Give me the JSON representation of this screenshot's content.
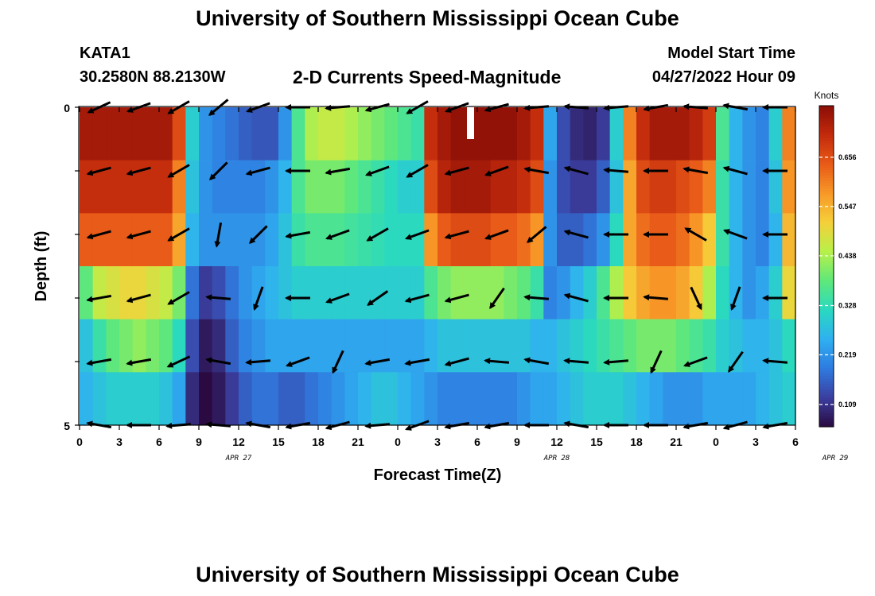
{
  "header": {
    "title": "University of Southern Mississippi Ocean Cube",
    "station": "KATA1",
    "coords": "30.2580N  88.2130W",
    "chart_title": "2-D Currents Speed-Magnitude",
    "model_start_label": "Model Start Time",
    "model_start_value": "04/27/2022 Hour 09"
  },
  "footer": {
    "title": "University of Southern Mississippi Ocean Cube"
  },
  "colors": {
    "colormap": [
      "#2a0a40",
      "#3b3fa0",
      "#2f7be0",
      "#2fb0f0",
      "#2ad9c0",
      "#5fe87a",
      "#b8f04a",
      "#f5d03a",
      "#f89828",
      "#e85a18",
      "#c22a0c",
      "#8a0e06"
    ]
  },
  "chart_data": {
    "type": "heatmap",
    "title": "2-D Currents Speed-Magnitude",
    "xlabel": "Forecast Time(Z)",
    "ylabel": "Depth (ft)",
    "x_tick_labels": [
      "0",
      "3",
      "6",
      "9",
      "12",
      "15",
      "18",
      "21",
      "0",
      "3",
      "6",
      "9",
      "12",
      "15",
      "18",
      "21",
      "0",
      "3",
      "6"
    ],
    "date_labels": [
      "APR 27",
      "APR 28",
      "APR 29"
    ],
    "y_tick_labels": [
      "0",
      "5"
    ],
    "ylim": [
      0,
      5
    ],
    "colorbar": {
      "label": "Knots",
      "ticks": [
        "0.656",
        "0.547",
        "0.438",
        "0.328",
        "0.219",
        "0.109"
      ],
      "range": [
        0.06,
        0.77
      ]
    },
    "depth_layers": 6,
    "time_steps_hours": 54,
    "speed_knots": [
      [
        0.74,
        0.74,
        0.74,
        0.74,
        0.74,
        0.74,
        0.74,
        0.66,
        0.3,
        0.22,
        0.2,
        0.18,
        0.16,
        0.15,
        0.15,
        0.22,
        0.36,
        0.44,
        0.46,
        0.46,
        0.44,
        0.42,
        0.4,
        0.38,
        0.36,
        0.34,
        0.7,
        0.74,
        0.76,
        0.76,
        0.76,
        0.76,
        0.76,
        0.74,
        0.7,
        0.24,
        0.14,
        0.1,
        0.09,
        0.12,
        0.3,
        0.6,
        0.7,
        0.74,
        0.74,
        0.74,
        0.72,
        0.68,
        0.36,
        0.26,
        0.22,
        0.2,
        0.3,
        0.6
      ],
      [
        0.7,
        0.7,
        0.7,
        0.7,
        0.7,
        0.7,
        0.7,
        0.6,
        0.28,
        0.22,
        0.2,
        0.2,
        0.2,
        0.2,
        0.22,
        0.26,
        0.36,
        0.4,
        0.4,
        0.4,
        0.38,
        0.36,
        0.34,
        0.32,
        0.3,
        0.3,
        0.66,
        0.72,
        0.74,
        0.74,
        0.74,
        0.72,
        0.72,
        0.7,
        0.66,
        0.22,
        0.14,
        0.12,
        0.12,
        0.16,
        0.28,
        0.56,
        0.66,
        0.68,
        0.68,
        0.66,
        0.64,
        0.6,
        0.34,
        0.26,
        0.22,
        0.2,
        0.28,
        0.58
      ],
      [
        0.64,
        0.64,
        0.64,
        0.64,
        0.64,
        0.64,
        0.64,
        0.56,
        0.26,
        0.22,
        0.22,
        0.22,
        0.22,
        0.22,
        0.24,
        0.28,
        0.34,
        0.36,
        0.36,
        0.36,
        0.35,
        0.34,
        0.33,
        0.32,
        0.32,
        0.32,
        0.58,
        0.64,
        0.66,
        0.66,
        0.66,
        0.64,
        0.64,
        0.62,
        0.58,
        0.22,
        0.16,
        0.16,
        0.18,
        0.22,
        0.32,
        0.56,
        0.62,
        0.64,
        0.64,
        0.62,
        0.58,
        0.52,
        0.34,
        0.26,
        0.22,
        0.2,
        0.26,
        0.54
      ],
      [
        0.38,
        0.46,
        0.48,
        0.5,
        0.5,
        0.48,
        0.46,
        0.4,
        0.18,
        0.12,
        0.14,
        0.18,
        0.22,
        0.24,
        0.26,
        0.28,
        0.3,
        0.3,
        0.3,
        0.3,
        0.3,
        0.3,
        0.3,
        0.3,
        0.3,
        0.3,
        0.36,
        0.4,
        0.42,
        0.42,
        0.42,
        0.42,
        0.4,
        0.38,
        0.34,
        0.2,
        0.22,
        0.26,
        0.3,
        0.36,
        0.44,
        0.52,
        0.56,
        0.58,
        0.58,
        0.56,
        0.52,
        0.44,
        0.32,
        0.26,
        0.22,
        0.24,
        0.3,
        0.5
      ],
      [
        0.28,
        0.34,
        0.38,
        0.4,
        0.42,
        0.4,
        0.38,
        0.32,
        0.14,
        0.08,
        0.1,
        0.16,
        0.2,
        0.22,
        0.24,
        0.24,
        0.24,
        0.24,
        0.24,
        0.24,
        0.24,
        0.24,
        0.24,
        0.24,
        0.24,
        0.24,
        0.26,
        0.28,
        0.28,
        0.28,
        0.28,
        0.28,
        0.28,
        0.28,
        0.26,
        0.26,
        0.28,
        0.3,
        0.32,
        0.34,
        0.36,
        0.38,
        0.4,
        0.4,
        0.4,
        0.38,
        0.36,
        0.34,
        0.3,
        0.28,
        0.26,
        0.26,
        0.28,
        0.32
      ],
      [
        0.26,
        0.28,
        0.3,
        0.3,
        0.3,
        0.3,
        0.28,
        0.24,
        0.1,
        0.06,
        0.08,
        0.12,
        0.16,
        0.18,
        0.18,
        0.16,
        0.16,
        0.18,
        0.2,
        0.22,
        0.24,
        0.26,
        0.28,
        0.28,
        0.26,
        0.24,
        0.22,
        0.2,
        0.2,
        0.2,
        0.2,
        0.2,
        0.2,
        0.22,
        0.24,
        0.24,
        0.26,
        0.28,
        0.3,
        0.3,
        0.3,
        0.28,
        0.26,
        0.24,
        0.22,
        0.22,
        0.22,
        0.24,
        0.24,
        0.24,
        0.24,
        0.26,
        0.28,
        0.3
      ]
    ],
    "vector_times_hours": [
      1.5,
      4.5,
      7.5,
      10.5,
      13.5,
      16.5,
      19.5,
      22.5,
      25.5,
      28.5,
      31.5,
      34.5,
      37.5,
      40.5,
      43.5,
      46.5,
      49.5,
      52.5
    ],
    "vector_depth_layers": [
      0,
      1,
      2,
      3,
      4,
      5
    ],
    "vector_angle_deg": [
      [
        205,
        200,
        210,
        220,
        200,
        180,
        185,
        195,
        210,
        200,
        195,
        185,
        175,
        185,
        190,
        175,
        170,
        180
      ],
      [
        195,
        195,
        210,
        225,
        195,
        180,
        190,
        200,
        210,
        195,
        200,
        170,
        165,
        175,
        180,
        170,
        165,
        180
      ],
      [
        195,
        195,
        210,
        260,
        225,
        190,
        200,
        210,
        200,
        195,
        200,
        220,
        165,
        180,
        180,
        150,
        160,
        180
      ],
      [
        190,
        195,
        210,
        175,
        250,
        180,
        200,
        215,
        195,
        195,
        235,
        175,
        165,
        180,
        175,
        295,
        250,
        180
      ],
      [
        190,
        190,
        205,
        170,
        185,
        200,
        245,
        190,
        190,
        195,
        175,
        170,
        175,
        185,
        245,
        200,
        235,
        175
      ],
      [
        170,
        180,
        185,
        175,
        170,
        190,
        195,
        185,
        200,
        190,
        190,
        180,
        170,
        180,
        180,
        190,
        195,
        190
      ]
    ]
  }
}
